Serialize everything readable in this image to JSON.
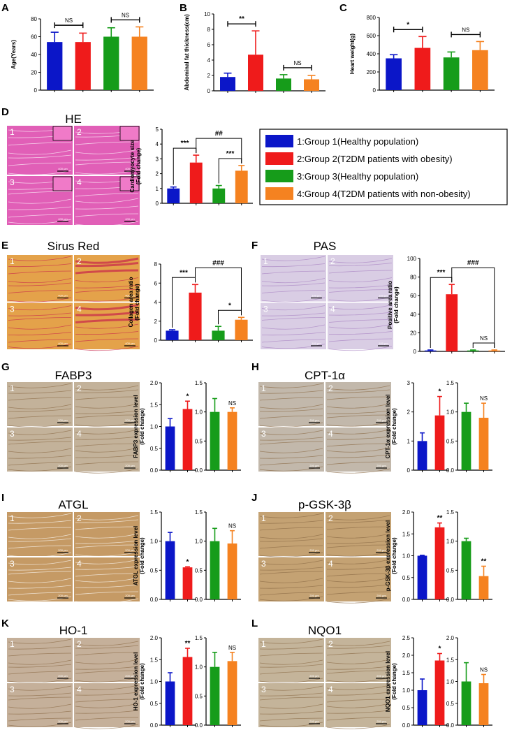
{
  "colors": {
    "g1": "#0b16c8",
    "g2": "#ef1b1b",
    "g3": "#169c1a",
    "g4": "#f58220"
  },
  "legend": [
    {
      "label": "1:Group 1(Healthy population)",
      "color": "#0b16c8"
    },
    {
      "label": "2:Group 2(T2DM patients with obesity)",
      "color": "#ef1b1b"
    },
    {
      "label": "3:Group 3(Healthy population)",
      "color": "#169c1a"
    },
    {
      "label": "4:Group 4(T2DM patients with non-obesity)",
      "color": "#f58220"
    }
  ],
  "images": [
    {
      "id": "D",
      "title": "HE",
      "scale": "400 μm",
      "colors": [
        "#e15fb7",
        "#ffffff"
      ]
    },
    {
      "id": "E",
      "title": "Sirus Red",
      "scale": "400 μm",
      "colors": [
        "#e4a24a",
        "#c8244a"
      ]
    },
    {
      "id": "F",
      "title": "PAS",
      "scale": "100 μm",
      "colors": [
        "#d9cde4",
        "#a57fc0"
      ]
    },
    {
      "id": "G",
      "title": "FABP3",
      "scale": "200 μm",
      "colors": [
        "#c3b29a",
        "#8a6a45"
      ]
    },
    {
      "id": "H",
      "title": "CPT-1α",
      "scale": "200 μm",
      "colors": [
        "#c2b8ab",
        "#8a6a45"
      ]
    },
    {
      "id": "I",
      "title": "ATGL",
      "scale": "200 μm",
      "colors": [
        "#c59a65",
        "#ffffff"
      ]
    },
    {
      "id": "J",
      "title": "p-GSK-3β",
      "scale": "200 μm",
      "colors": [
        "#c4a273",
        "#8a6a45"
      ]
    },
    {
      "id": "K",
      "title": "HO-1",
      "scale": "200 μm",
      "colors": [
        "#c5b09a",
        "#8a6a45"
      ]
    },
    {
      "id": "L",
      "title": "NQO1",
      "scale": "200 μm",
      "colors": [
        "#c4b49a",
        "#8a6a45"
      ]
    }
  ],
  "chart_data": [
    {
      "id": "A",
      "type": "bar",
      "ylabel": "Age(Years)",
      "ylim": [
        0,
        80
      ],
      "yticks": [
        0,
        20,
        40,
        60,
        80
      ],
      "values": [
        54,
        54,
        60,
        60
      ],
      "errors": [
        11,
        10,
        10,
        11
      ],
      "groups": [
        1,
        2,
        3,
        4
      ],
      "annotations": [
        {
          "text": "NS",
          "from": 1,
          "to": 2
        },
        {
          "text": "NS",
          "from": 3,
          "to": 4
        }
      ]
    },
    {
      "id": "B",
      "type": "bar",
      "ylabel": "Abdominal fat thickness(cm)",
      "ylim": [
        0,
        10
      ],
      "yticks": [
        0,
        2,
        4,
        6,
        8,
        10
      ],
      "values": [
        1.8,
        4.7,
        1.6,
        1.5
      ],
      "errors": [
        0.5,
        3.1,
        0.5,
        0.5
      ],
      "groups": [
        1,
        2,
        3,
        4
      ],
      "annotations": [
        {
          "text": "**",
          "from": 1,
          "to": 2
        },
        {
          "text": "NS",
          "from": 3,
          "to": 4
        }
      ]
    },
    {
      "id": "C",
      "type": "bar",
      "ylabel": "Heart weight(g)",
      "ylim": [
        0,
        800
      ],
      "yticks": [
        0,
        200,
        400,
        600,
        800
      ],
      "values": [
        350,
        465,
        360,
        440
      ],
      "errors": [
        40,
        125,
        60,
        95
      ],
      "groups": [
        1,
        2,
        3,
        4
      ],
      "annotations": [
        {
          "text": "*",
          "from": 1,
          "to": 2
        },
        {
          "text": "NS",
          "from": 3,
          "to": 4
        }
      ]
    },
    {
      "id": "D",
      "type": "bar",
      "ylabel": "Cardiomyocyte size (Fold change)",
      "ylim": [
        0,
        5
      ],
      "yticks": [
        0,
        1,
        2,
        3,
        4,
        5
      ],
      "values": [
        1.0,
        2.75,
        1.0,
        2.2
      ],
      "errors": [
        0.1,
        0.5,
        0.2,
        0.35
      ],
      "groups": [
        1,
        2,
        3,
        4
      ],
      "annotations": [
        {
          "text": "***",
          "from": 1,
          "to": 2
        },
        {
          "text": "##",
          "from": 2,
          "to": 4
        },
        {
          "text": "***",
          "from": 3,
          "to": 4
        }
      ]
    },
    {
      "id": "E",
      "type": "bar",
      "ylabel": "Collagen area ratio (Fold change)",
      "ylim": [
        0,
        8
      ],
      "yticks": [
        0,
        2,
        4,
        6,
        8
      ],
      "values": [
        1.0,
        5.0,
        1.0,
        2.15
      ],
      "errors": [
        0.1,
        0.85,
        0.45,
        0.25
      ],
      "groups": [
        1,
        2,
        3,
        4
      ],
      "annotations": [
        {
          "text": "***",
          "from": 1,
          "to": 2
        },
        {
          "text": "###",
          "from": 2,
          "to": 4
        },
        {
          "text": "*",
          "from": 3,
          "to": 4
        }
      ]
    },
    {
      "id": "F",
      "type": "bar",
      "ylabel": "Positive area ratio (Fold change)",
      "ylim": [
        0,
        100
      ],
      "yticks": [
        0,
        20,
        40,
        60,
        80,
        100
      ],
      "values": [
        1,
        61.5,
        1,
        1
      ],
      "errors": [
        0.5,
        10.5,
        0.5,
        0.5
      ],
      "groups": [
        1,
        2,
        3,
        4
      ],
      "annotations": [
        {
          "text": "***",
          "from": 1,
          "to": 2
        },
        {
          "text": "###",
          "from": 2,
          "to": 4
        },
        {
          "text": "NS",
          "from": 3,
          "to": 4
        }
      ]
    },
    {
      "id": "G1",
      "type": "bar",
      "ylabel": "FABP3 expression level (Fold change)",
      "ylim": [
        0,
        2.0
      ],
      "yticks": [
        0.0,
        0.5,
        1.0,
        1.5,
        2.0
      ],
      "values": [
        1.0,
        1.4
      ],
      "errors": [
        0.18,
        0.18
      ],
      "groups": [
        1,
        2
      ],
      "annotations": [
        {
          "text": "*",
          "over": 2
        }
      ]
    },
    {
      "id": "G2",
      "type": "bar",
      "ylim": [
        0,
        1.5
      ],
      "yticks": [
        0.0,
        0.5,
        1.0,
        1.5
      ],
      "values": [
        1.0,
        1.0
      ],
      "errors": [
        0.23,
        0.07
      ],
      "groups": [
        3,
        4
      ],
      "annotations": [
        {
          "text": "NS",
          "over": 4
        }
      ]
    },
    {
      "id": "H1",
      "type": "bar",
      "ylabel": "CPT-1α expression level (Fold change)",
      "ylim": [
        0,
        3
      ],
      "yticks": [
        0,
        1,
        2,
        3
      ],
      "values": [
        1.0,
        1.88
      ],
      "errors": [
        0.28,
        0.65
      ],
      "groups": [
        1,
        2
      ],
      "annotations": [
        {
          "text": "*",
          "over": 2
        }
      ]
    },
    {
      "id": "H2",
      "type": "bar",
      "ylim": [
        0,
        1.5
      ],
      "yticks": [
        0.0,
        0.5,
        1.0,
        1.5
      ],
      "values": [
        1.0,
        0.9
      ],
      "errors": [
        0.15,
        0.25
      ],
      "groups": [
        3,
        4
      ],
      "annotations": [
        {
          "text": "NS",
          "over": 4
        }
      ]
    },
    {
      "id": "I1",
      "type": "bar",
      "ylabel": "ATGL expression level (Fold change)",
      "ylim": [
        0,
        1.5
      ],
      "yticks": [
        0.0,
        0.5,
        1.0,
        1.5
      ],
      "values": [
        1.0,
        0.55
      ],
      "errors": [
        0.15,
        0.01
      ],
      "groups": [
        1,
        2
      ],
      "annotations": [
        {
          "text": "*",
          "over": 2
        }
      ]
    },
    {
      "id": "I2",
      "type": "bar",
      "ylim": [
        0,
        1.5
      ],
      "yticks": [
        0.0,
        0.5,
        1.0,
        1.5
      ],
      "values": [
        1.0,
        0.96
      ],
      "errors": [
        0.22,
        0.22
      ],
      "groups": [
        3,
        4
      ],
      "annotations": [
        {
          "text": "NS",
          "over": 4
        }
      ]
    },
    {
      "id": "J1",
      "type": "bar",
      "ylabel": "p-GSK-3β expression level (Fold change)",
      "ylim": [
        0,
        2.0
      ],
      "yticks": [
        0.0,
        0.5,
        1.0,
        1.5,
        2.0
      ],
      "values": [
        1.0,
        1.65
      ],
      "errors": [
        0.01,
        0.1
      ],
      "groups": [
        1,
        2
      ],
      "annotations": [
        {
          "text": "**",
          "over": 2
        }
      ]
    },
    {
      "id": "J2",
      "type": "bar",
      "ylim": [
        0,
        1.5
      ],
      "yticks": [
        0.0,
        0.5,
        1.0,
        1.5
      ],
      "values": [
        1.0,
        0.4
      ],
      "errors": [
        0.05,
        0.17
      ],
      "groups": [
        3,
        4
      ],
      "annotations": [
        {
          "text": "**",
          "over": 4
        }
      ]
    },
    {
      "id": "K1",
      "type": "bar",
      "ylabel": "HO-1 expression level (Fold change)",
      "ylim": [
        0,
        2.0
      ],
      "yticks": [
        0.0,
        0.5,
        1.0,
        1.5,
        2.0
      ],
      "values": [
        1.0,
        1.56
      ],
      "errors": [
        0.2,
        0.2
      ],
      "groups": [
        1,
        2
      ],
      "annotations": [
        {
          "text": "**",
          "over": 2
        }
      ]
    },
    {
      "id": "K2",
      "type": "bar",
      "ylim": [
        0,
        1.5
      ],
      "yticks": [
        0.0,
        0.5,
        1.0,
        1.5
      ],
      "values": [
        1.0,
        1.1
      ],
      "errors": [
        0.25,
        0.15
      ],
      "groups": [
        3,
        4
      ],
      "annotations": [
        {
          "text": "NS",
          "over": 4
        }
      ]
    },
    {
      "id": "L1",
      "type": "bar",
      "ylabel": "NQO1 expression level (Fold change)",
      "ylim": [
        0,
        2.5
      ],
      "yticks": [
        0.0,
        0.5,
        1.0,
        1.5,
        2.0,
        2.5
      ],
      "values": [
        1.0,
        1.85
      ],
      "errors": [
        0.32,
        0.2
      ],
      "groups": [
        1,
        2
      ],
      "annotations": [
        {
          "text": "*",
          "over": 2
        }
      ]
    },
    {
      "id": "L2",
      "type": "bar",
      "ylim": [
        0,
        2.0
      ],
      "yticks": [
        0.0,
        0.5,
        1.0,
        1.5,
        2.0
      ],
      "values": [
        1.0,
        0.96
      ],
      "errors": [
        0.43,
        0.2
      ],
      "groups": [
        3,
        4
      ],
      "annotations": [
        {
          "text": "NS",
          "over": 4
        }
      ]
    }
  ]
}
